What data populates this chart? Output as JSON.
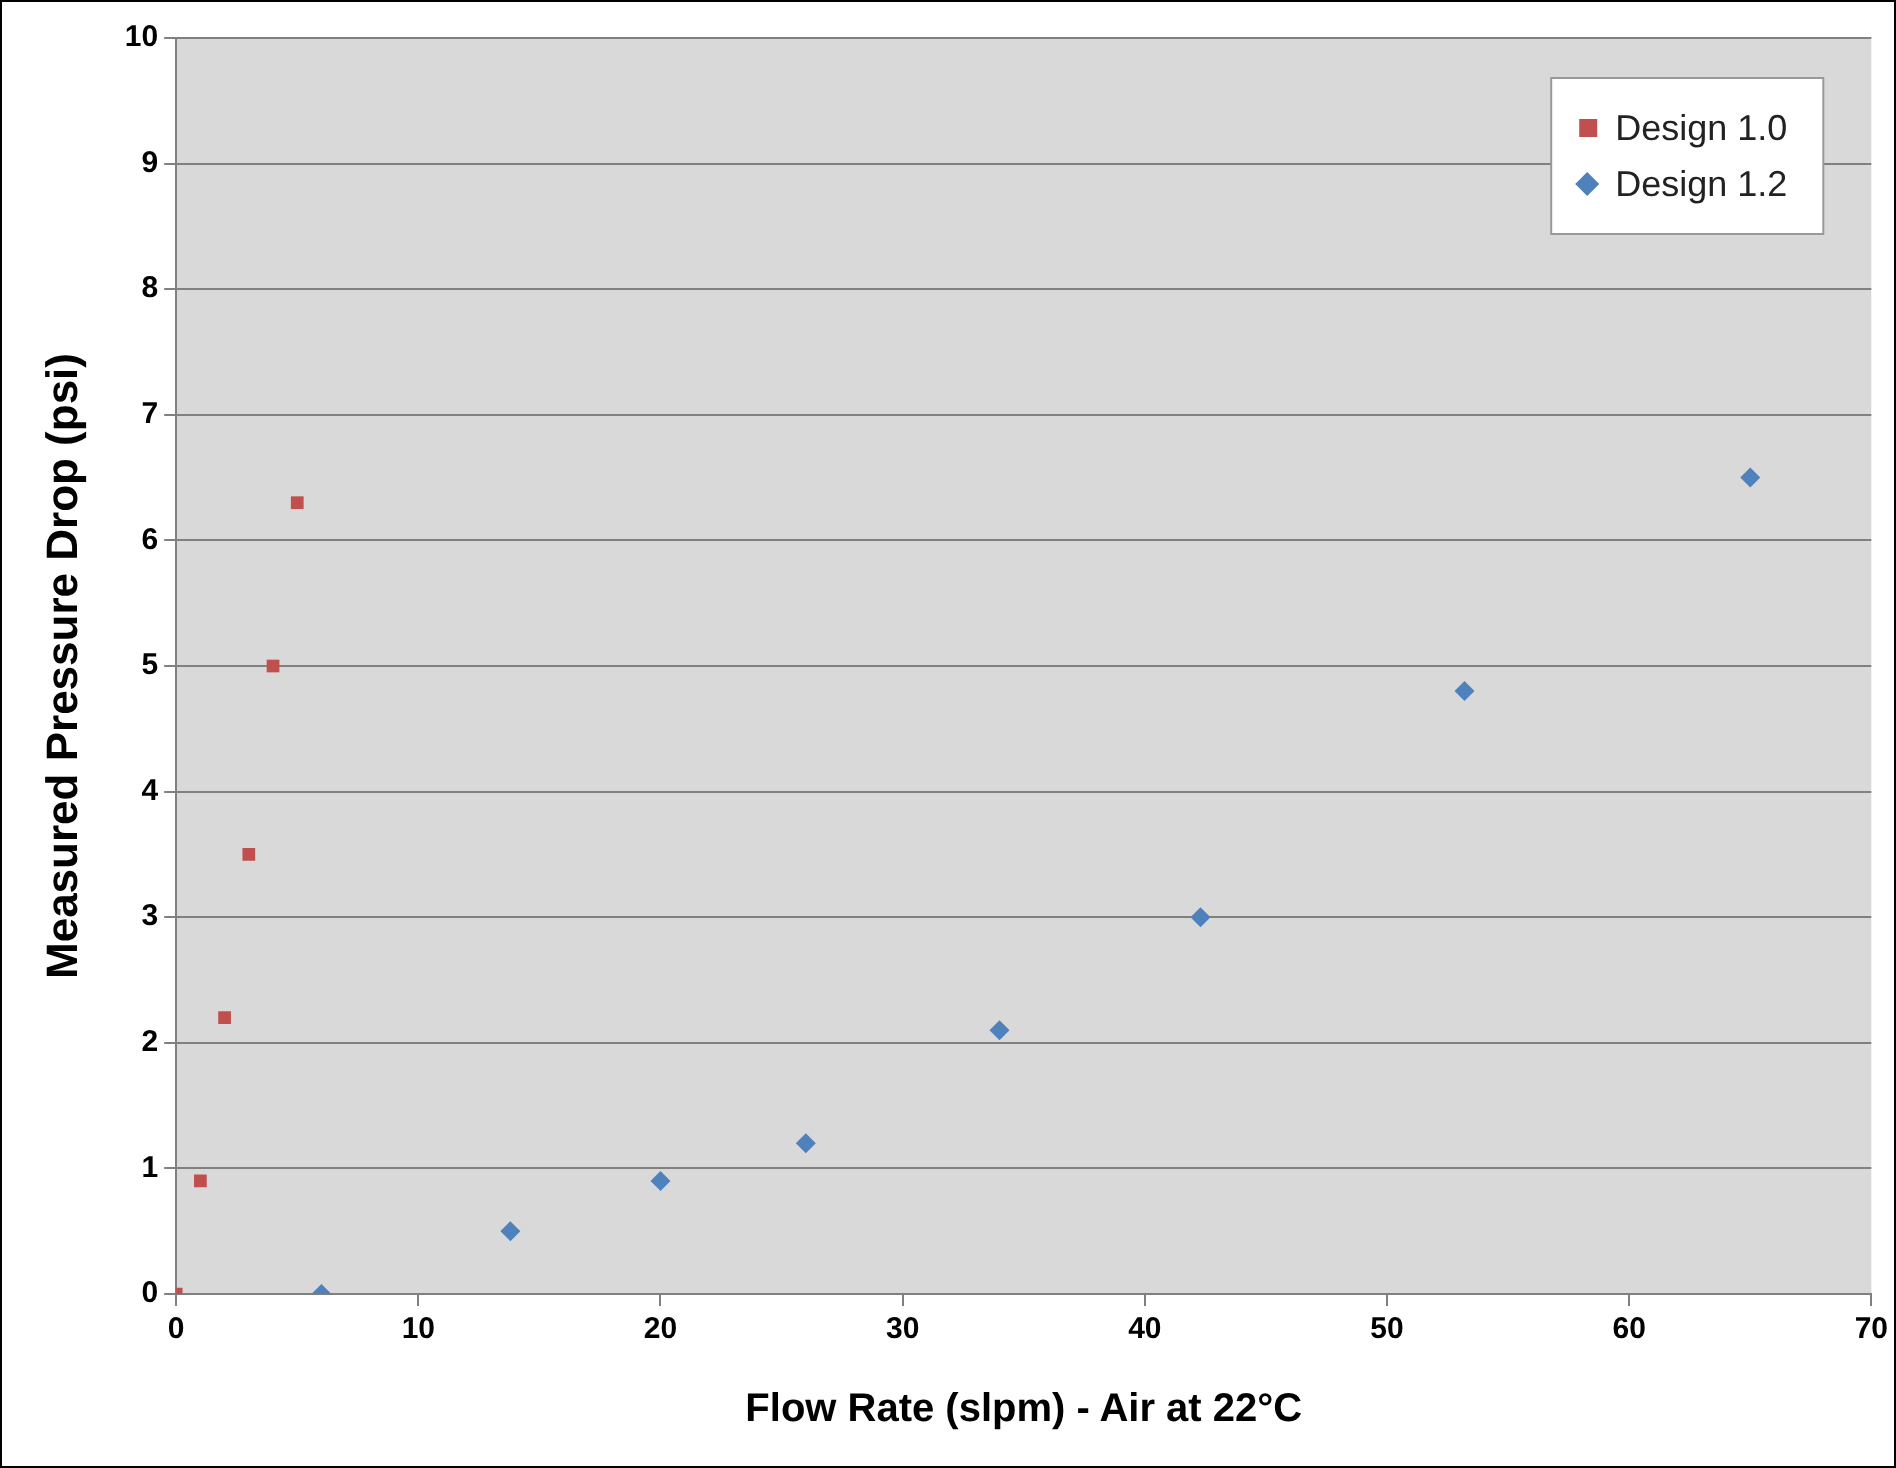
{
  "chart_data": {
    "type": "scatter",
    "xlabel": "Flow Rate (slpm) - Air at 22°C",
    "ylabel": "Measured Pressure Drop (psi)",
    "xlim": [
      0,
      70
    ],
    "xticks": [
      0,
      10,
      20,
      30,
      40,
      50,
      60,
      70
    ],
    "ylim": [
      0,
      10
    ],
    "yticks": [
      0,
      1,
      2,
      3,
      4,
      5,
      6,
      7,
      8,
      9,
      10
    ],
    "grid": "y",
    "legend": "top right",
    "series": [
      {
        "name": "Design 1.0",
        "color": "#c0504d",
        "marker": "square",
        "x": [
          0,
          1,
          2,
          3,
          4,
          5
        ],
        "values": [
          0,
          0.9,
          2.2,
          3.5,
          5.0,
          6.3
        ]
      },
      {
        "name": "Design 1.2",
        "color": "#4f81bd",
        "marker": "diamond",
        "x": [
          6,
          13.8,
          20,
          26,
          34,
          42.3,
          53.2,
          65
        ],
        "values": [
          0,
          0.5,
          0.9,
          1.2,
          2.1,
          3.0,
          4.8,
          6.5
        ]
      }
    ]
  }
}
